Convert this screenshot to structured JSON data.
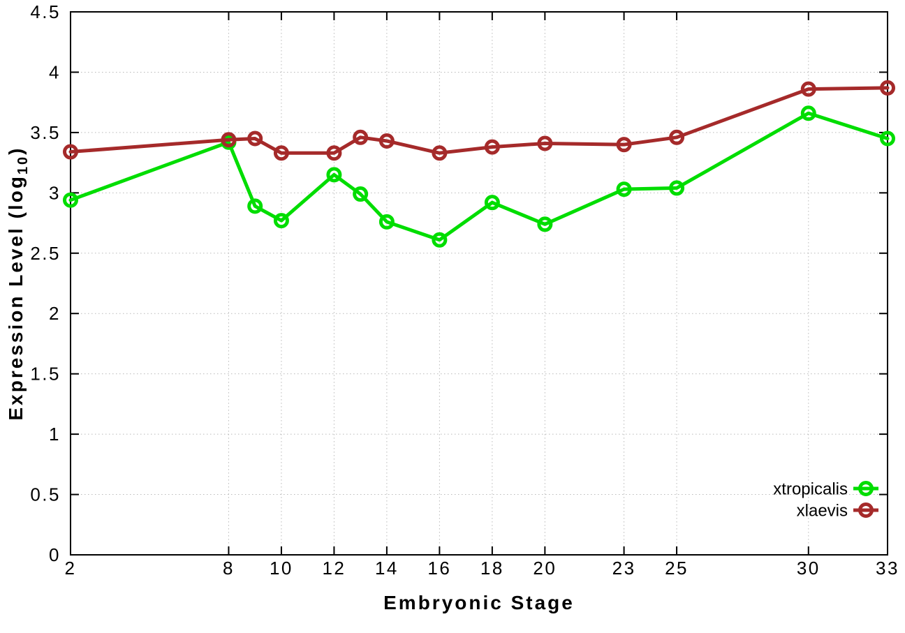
{
  "figure": {
    "background": "#ffffff",
    "ylabel_main": "Expression Level (log",
    "ylabel_sub": "10",
    "ylabel_close": ")"
  },
  "chart_data": {
    "type": "line",
    "title": "",
    "xlabel": "Embryonic Stage",
    "ylabel": "Expression Level (log10)",
    "xlim": [
      2,
      33
    ],
    "ylim": [
      0,
      4.5
    ],
    "grid": true,
    "legend_position": "bottom-right",
    "marker": "open-circle",
    "axis_color": "#000000",
    "grid_color": "#b9b9b9",
    "x": [
      2,
      8,
      9,
      10,
      12,
      13,
      14,
      16,
      18,
      20,
      23,
      25,
      30,
      33
    ],
    "series": [
      {
        "name": "xtropicalis",
        "color": "#00dd00",
        "values": [
          2.94,
          3.42,
          2.89,
          2.77,
          3.15,
          2.99,
          2.76,
          2.61,
          2.92,
          2.74,
          3.03,
          3.04,
          3.66,
          3.45
        ]
      },
      {
        "name": "xlaevis",
        "color": "#a52a2a",
        "values": [
          3.34,
          3.44,
          3.45,
          3.33,
          3.33,
          3.46,
          3.43,
          3.33,
          3.38,
          3.41,
          3.4,
          3.46,
          3.86,
          3.87
        ]
      }
    ],
    "xticks": [
      {
        "v": 2,
        "label": "2"
      },
      {
        "v": 8,
        "label": "8"
      },
      {
        "v": 10,
        "label": "10"
      },
      {
        "v": 12,
        "label": "12"
      },
      {
        "v": 14,
        "label": "14"
      },
      {
        "v": 16,
        "label": "16"
      },
      {
        "v": 18,
        "label": "18"
      },
      {
        "v": 20,
        "label": "20"
      },
      {
        "v": 23,
        "label": "23"
      },
      {
        "v": 25,
        "label": "25"
      },
      {
        "v": 30,
        "label": "30"
      },
      {
        "v": 33,
        "label": "33"
      }
    ],
    "yticks": [
      {
        "v": 0,
        "label": "0"
      },
      {
        "v": 0.5,
        "label": "0.5"
      },
      {
        "v": 1,
        "label": "1"
      },
      {
        "v": 1.5,
        "label": "1.5"
      },
      {
        "v": 2,
        "label": "2"
      },
      {
        "v": 2.5,
        "label": "2.5"
      },
      {
        "v": 3,
        "label": "3"
      },
      {
        "v": 3.5,
        "label": "3.5"
      },
      {
        "v": 4,
        "label": "4"
      },
      {
        "v": 4.5,
        "label": "4.5"
      }
    ]
  }
}
